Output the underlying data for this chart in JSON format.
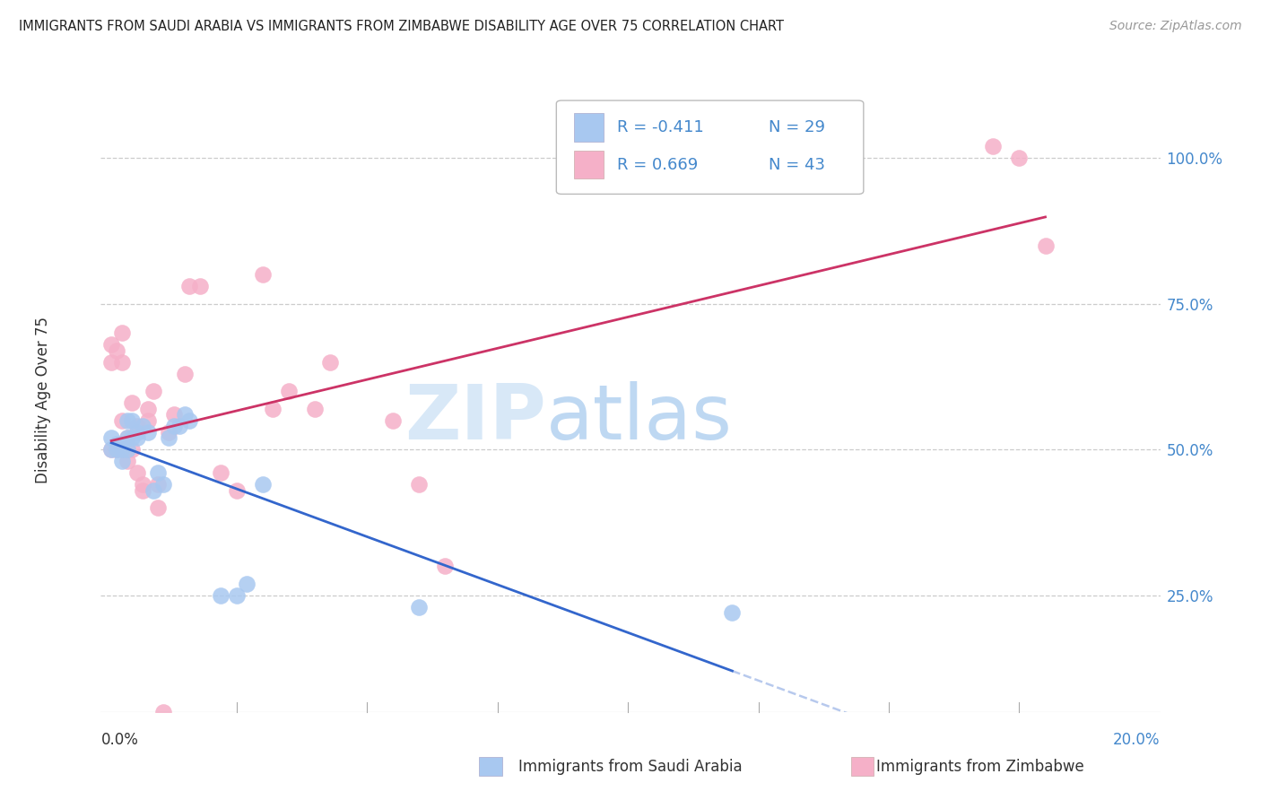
{
  "title": "IMMIGRANTS FROM SAUDI ARABIA VS IMMIGRANTS FROM ZIMBABWE DISABILITY AGE OVER 75 CORRELATION CHART",
  "source": "Source: ZipAtlas.com",
  "ylabel": "Disability Age Over 75",
  "legend_blue_r": "R = -0.411",
  "legend_blue_n": "N = 29",
  "legend_pink_r": "R = 0.669",
  "legend_pink_n": "N = 43",
  "legend_label_blue": "Immigrants from Saudi Arabia",
  "legend_label_pink": "Immigrants from Zimbabwe",
  "watermark_zip": "ZIP",
  "watermark_atlas": "atlas",
  "blue_color": "#a8c8f0",
  "pink_color": "#f5b0c8",
  "blue_line_color": "#3366cc",
  "pink_line_color": "#cc3366",
  "grid_color": "#cccccc",
  "background_color": "#ffffff",
  "right_label_color": "#4488cc",
  "xlim": [
    -0.001,
    0.202
  ],
  "ylim": [
    0.05,
    1.12
  ],
  "yticks": [
    0.25,
    0.5,
    0.75,
    1.0
  ],
  "ytick_labels": [
    "25.0%",
    "50.0%",
    "75.0%",
    "100.0%"
  ],
  "blue_x": [
    0.001,
    0.001,
    0.002,
    0.002,
    0.003,
    0.003,
    0.004,
    0.004,
    0.004,
    0.005,
    0.005,
    0.006,
    0.006,
    0.007,
    0.008,
    0.009,
    0.01,
    0.011,
    0.012,
    0.013,
    0.014,
    0.015,
    0.016,
    0.022,
    0.025,
    0.027,
    0.03,
    0.06,
    0.12
  ],
  "blue_y": [
    0.5,
    0.52,
    0.5,
    0.51,
    0.48,
    0.5,
    0.52,
    0.5,
    0.55,
    0.52,
    0.55,
    0.53,
    0.52,
    0.54,
    0.53,
    0.43,
    0.46,
    0.44,
    0.52,
    0.54,
    0.54,
    0.56,
    0.55,
    0.25,
    0.25,
    0.27,
    0.44,
    0.23,
    0.22
  ],
  "pink_x": [
    0.001,
    0.001,
    0.001,
    0.002,
    0.002,
    0.002,
    0.003,
    0.003,
    0.003,
    0.003,
    0.004,
    0.004,
    0.004,
    0.005,
    0.005,
    0.006,
    0.006,
    0.007,
    0.007,
    0.008,
    0.008,
    0.009,
    0.01,
    0.011,
    0.012,
    0.013,
    0.015,
    0.016,
    0.018,
    0.022,
    0.025,
    0.03,
    0.032,
    0.035,
    0.04,
    0.043,
    0.055,
    0.06,
    0.065,
    0.17,
    0.175,
    0.18,
    0.01
  ],
  "pink_y": [
    0.5,
    0.65,
    0.68,
    0.5,
    0.5,
    0.67,
    0.7,
    0.65,
    0.5,
    0.55,
    0.5,
    0.52,
    0.48,
    0.5,
    0.58,
    0.54,
    0.46,
    0.43,
    0.44,
    0.55,
    0.57,
    0.6,
    0.44,
    0.05,
    0.53,
    0.56,
    0.63,
    0.78,
    0.78,
    0.46,
    0.43,
    0.8,
    0.57,
    0.6,
    0.57,
    0.65,
    0.55,
    0.44,
    0.3,
    1.02,
    1.0,
    0.85,
    0.4
  ]
}
